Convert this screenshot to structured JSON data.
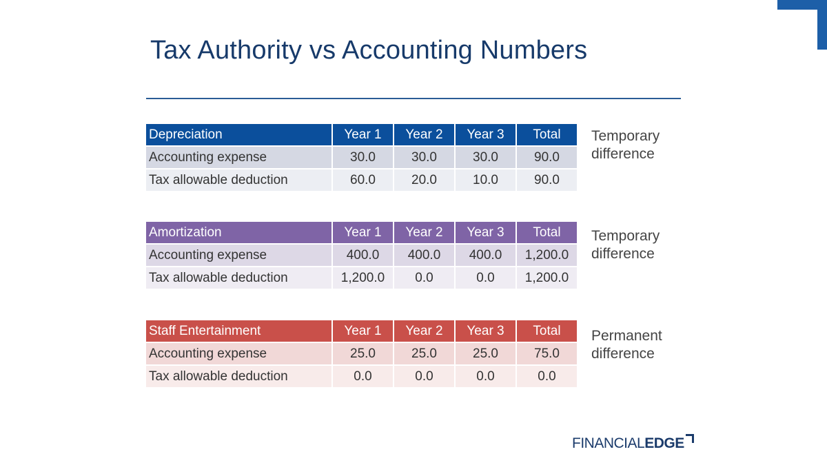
{
  "slide": {
    "title": "Tax Authority vs Accounting Numbers",
    "logo": {
      "part1": "FINANCIAL",
      "part2": "EDGE"
    },
    "colors": {
      "title": "#173a6a",
      "blue": "#0b4f9c",
      "purple": "#7f64a6",
      "red": "#c9504a"
    }
  },
  "tables": {
    "depreciation": {
      "header": [
        "Depreciation",
        "Year 1",
        "Year 2",
        "Year 3",
        "Total"
      ],
      "rows": [
        [
          "Accounting expense",
          "30.0",
          "30.0",
          "30.0",
          "90.0"
        ],
        [
          "Tax allowable deduction",
          "60.0",
          "20.0",
          "10.0",
          "90.0"
        ]
      ],
      "note": [
        "Temporary",
        "difference"
      ]
    },
    "amortization": {
      "header": [
        "Amortization",
        "Year 1",
        "Year 2",
        "Year 3",
        "Total"
      ],
      "rows": [
        [
          "Accounting expense",
          "400.0",
          "400.0",
          "400.0",
          "1,200.0"
        ],
        [
          "Tax allowable deduction",
          "1,200.0",
          "0.0",
          "0.0",
          "1,200.0"
        ]
      ],
      "note": [
        "Temporary",
        "difference"
      ]
    },
    "staff": {
      "header": [
        "Staff Entertainment",
        "Year 1",
        "Year 2",
        "Year 3",
        "Total"
      ],
      "rows": [
        [
          "Accounting expense",
          "25.0",
          "25.0",
          "25.0",
          "75.0"
        ],
        [
          "Tax allowable deduction",
          "0.0",
          "0.0",
          "0.0",
          "0.0"
        ]
      ],
      "note": [
        "Permanent",
        "difference"
      ]
    }
  }
}
